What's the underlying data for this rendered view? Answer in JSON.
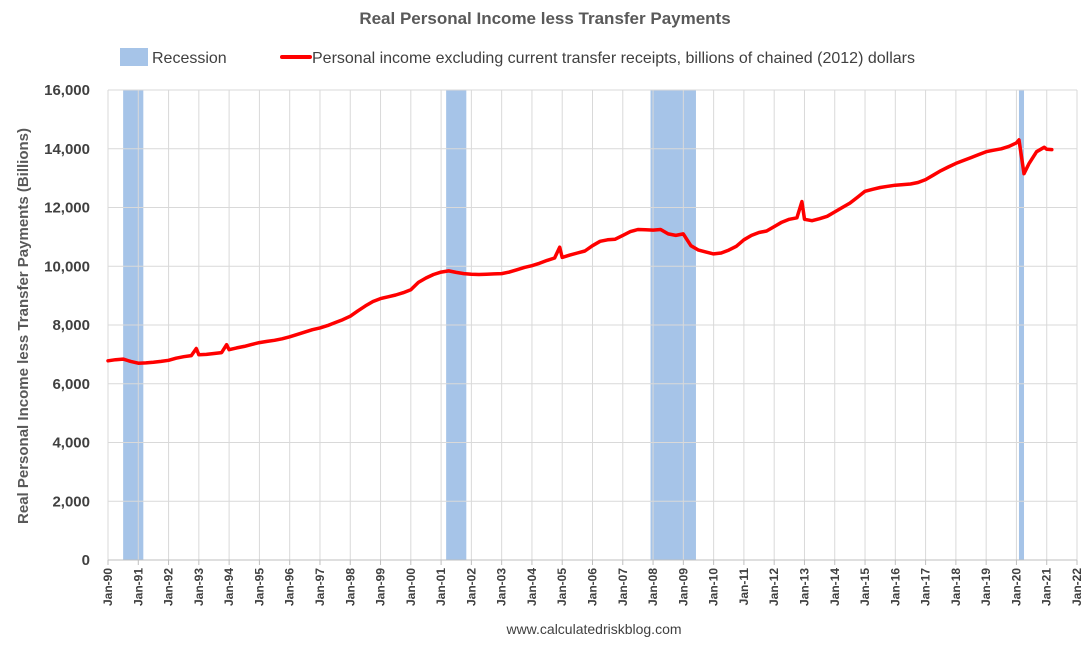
{
  "chart_data": {
    "type": "line",
    "title": "Real Personal Income less Transfer Payments",
    "ylabel": "Real Personal Income less Transfer Payments (Billions)",
    "xlabel": "",
    "ylim": [
      0,
      16000
    ],
    "yticks": [
      0,
      2000,
      4000,
      6000,
      8000,
      10000,
      12000,
      14000,
      16000
    ],
    "ytick_labels": [
      "0",
      "2,000",
      "4,000",
      "6,000",
      "8,000",
      "10,000",
      "12,000",
      "14,000",
      "16,000"
    ],
    "xlim": [
      "1990-01",
      "2022-01"
    ],
    "xtick_labels": [
      "Jan-90",
      "Jan-91",
      "Jan-92",
      "Jan-93",
      "Jan-94",
      "Jan-95",
      "Jan-96",
      "Jan-97",
      "Jan-98",
      "Jan-99",
      "Jan-00",
      "Jan-01",
      "Jan-02",
      "Jan-03",
      "Jan-04",
      "Jan-05",
      "Jan-06",
      "Jan-07",
      "Jan-08",
      "Jan-09",
      "Jan-10",
      "Jan-11",
      "Jan-12",
      "Jan-13",
      "Jan-14",
      "Jan-15",
      "Jan-16",
      "Jan-17",
      "Jan-18",
      "Jan-19",
      "Jan-20",
      "Jan-21",
      "Jan-22"
    ],
    "grid": true,
    "legend": {
      "placement": "top",
      "recession_label": "Recession",
      "series_label": "Personal income excluding current transfer receipts, billions of chained (2012) dollars"
    },
    "recessions": [
      {
        "start": "1990-07",
        "end": "1991-03"
      },
      {
        "start": "2001-03",
        "end": "2001-11"
      },
      {
        "start": "2007-12",
        "end": "2009-06"
      },
      {
        "start": "2020-02",
        "end": "2020-04"
      }
    ],
    "series": [
      {
        "name": "Personal income excluding current transfer receipts, billions of chained (2012) dollars",
        "color": "#ff0000",
        "points": [
          [
            "1990-01",
            6780
          ],
          [
            "1990-04",
            6820
          ],
          [
            "1990-07",
            6840
          ],
          [
            "1990-10",
            6760
          ],
          [
            "1991-01",
            6700
          ],
          [
            "1991-04",
            6710
          ],
          [
            "1991-07",
            6730
          ],
          [
            "1991-10",
            6760
          ],
          [
            "1992-01",
            6800
          ],
          [
            "1992-04",
            6870
          ],
          [
            "1992-07",
            6920
          ],
          [
            "1992-10",
            6960
          ],
          [
            "1992-12",
            7200
          ],
          [
            "1993-01",
            6990
          ],
          [
            "1993-04",
            7000
          ],
          [
            "1993-07",
            7030
          ],
          [
            "1993-10",
            7060
          ],
          [
            "1993-12",
            7330
          ],
          [
            "1994-01",
            7160
          ],
          [
            "1994-04",
            7220
          ],
          [
            "1994-07",
            7270
          ],
          [
            "1994-10",
            7340
          ],
          [
            "1995-01",
            7400
          ],
          [
            "1995-04",
            7440
          ],
          [
            "1995-07",
            7480
          ],
          [
            "1995-10",
            7530
          ],
          [
            "1996-01",
            7600
          ],
          [
            "1996-04",
            7680
          ],
          [
            "1996-07",
            7760
          ],
          [
            "1996-10",
            7840
          ],
          [
            "1997-01",
            7900
          ],
          [
            "1997-04",
            7980
          ],
          [
            "1997-07",
            8080
          ],
          [
            "1997-10",
            8180
          ],
          [
            "1998-01",
            8300
          ],
          [
            "1998-04",
            8480
          ],
          [
            "1998-07",
            8650
          ],
          [
            "1998-10",
            8800
          ],
          [
            "1999-01",
            8900
          ],
          [
            "1999-04",
            8960
          ],
          [
            "1999-07",
            9020
          ],
          [
            "1999-10",
            9100
          ],
          [
            "2000-01",
            9200
          ],
          [
            "2000-04",
            9450
          ],
          [
            "2000-07",
            9600
          ],
          [
            "2000-10",
            9720
          ],
          [
            "2001-01",
            9800
          ],
          [
            "2001-04",
            9840
          ],
          [
            "2001-07",
            9790
          ],
          [
            "2001-10",
            9750
          ],
          [
            "2002-01",
            9730
          ],
          [
            "2002-04",
            9720
          ],
          [
            "2002-07",
            9730
          ],
          [
            "2002-10",
            9740
          ],
          [
            "2003-01",
            9750
          ],
          [
            "2003-04",
            9800
          ],
          [
            "2003-07",
            9880
          ],
          [
            "2003-10",
            9960
          ],
          [
            "2004-01",
            10020
          ],
          [
            "2004-04",
            10100
          ],
          [
            "2004-07",
            10200
          ],
          [
            "2004-10",
            10280
          ],
          [
            "2004-12",
            10650
          ],
          [
            "2005-01",
            10300
          ],
          [
            "2005-04",
            10380
          ],
          [
            "2005-07",
            10450
          ],
          [
            "2005-10",
            10520
          ],
          [
            "2006-01",
            10700
          ],
          [
            "2006-04",
            10850
          ],
          [
            "2006-07",
            10900
          ],
          [
            "2006-10",
            10920
          ],
          [
            "2007-01",
            11050
          ],
          [
            "2007-04",
            11180
          ],
          [
            "2007-07",
            11250
          ],
          [
            "2007-10",
            11240
          ],
          [
            "2008-01",
            11230
          ],
          [
            "2008-04",
            11250
          ],
          [
            "2008-07",
            11100
          ],
          [
            "2008-10",
            11050
          ],
          [
            "2009-01",
            11100
          ],
          [
            "2009-04",
            10700
          ],
          [
            "2009-07",
            10550
          ],
          [
            "2009-10",
            10480
          ],
          [
            "2010-01",
            10420
          ],
          [
            "2010-04",
            10450
          ],
          [
            "2010-07",
            10550
          ],
          [
            "2010-10",
            10680
          ],
          [
            "2011-01",
            10900
          ],
          [
            "2011-04",
            11050
          ],
          [
            "2011-07",
            11150
          ],
          [
            "2011-10",
            11200
          ],
          [
            "2012-01",
            11350
          ],
          [
            "2012-04",
            11500
          ],
          [
            "2012-07",
            11600
          ],
          [
            "2012-10",
            11650
          ],
          [
            "2012-12",
            12200
          ],
          [
            "2013-01",
            11600
          ],
          [
            "2013-04",
            11550
          ],
          [
            "2013-07",
            11620
          ],
          [
            "2013-10",
            11700
          ],
          [
            "2014-01",
            11850
          ],
          [
            "2014-04",
            12000
          ],
          [
            "2014-07",
            12150
          ],
          [
            "2014-10",
            12350
          ],
          [
            "2015-01",
            12550
          ],
          [
            "2015-04",
            12620
          ],
          [
            "2015-07",
            12680
          ],
          [
            "2015-10",
            12720
          ],
          [
            "2016-01",
            12760
          ],
          [
            "2016-04",
            12780
          ],
          [
            "2016-07",
            12800
          ],
          [
            "2016-10",
            12850
          ],
          [
            "2017-01",
            12950
          ],
          [
            "2017-04",
            13100
          ],
          [
            "2017-07",
            13250
          ],
          [
            "2017-10",
            13380
          ],
          [
            "2018-01",
            13500
          ],
          [
            "2018-04",
            13600
          ],
          [
            "2018-07",
            13700
          ],
          [
            "2018-10",
            13800
          ],
          [
            "2019-01",
            13900
          ],
          [
            "2019-04",
            13950
          ],
          [
            "2019-07",
            14000
          ],
          [
            "2019-10",
            14080
          ],
          [
            "2020-01",
            14200
          ],
          [
            "2020-02",
            14300
          ],
          [
            "2020-04",
            13150
          ],
          [
            "2020-06",
            13500
          ],
          [
            "2020-09",
            13900
          ],
          [
            "2020-12",
            14050
          ],
          [
            "2021-01",
            13980
          ],
          [
            "2021-03",
            13970
          ]
        ]
      }
    ]
  },
  "footer": {
    "source": "www.calculatedriskblog.com"
  },
  "colors": {
    "recession": "#a6c4e8",
    "line": "#ff0000",
    "grid": "#d9d9d9"
  }
}
